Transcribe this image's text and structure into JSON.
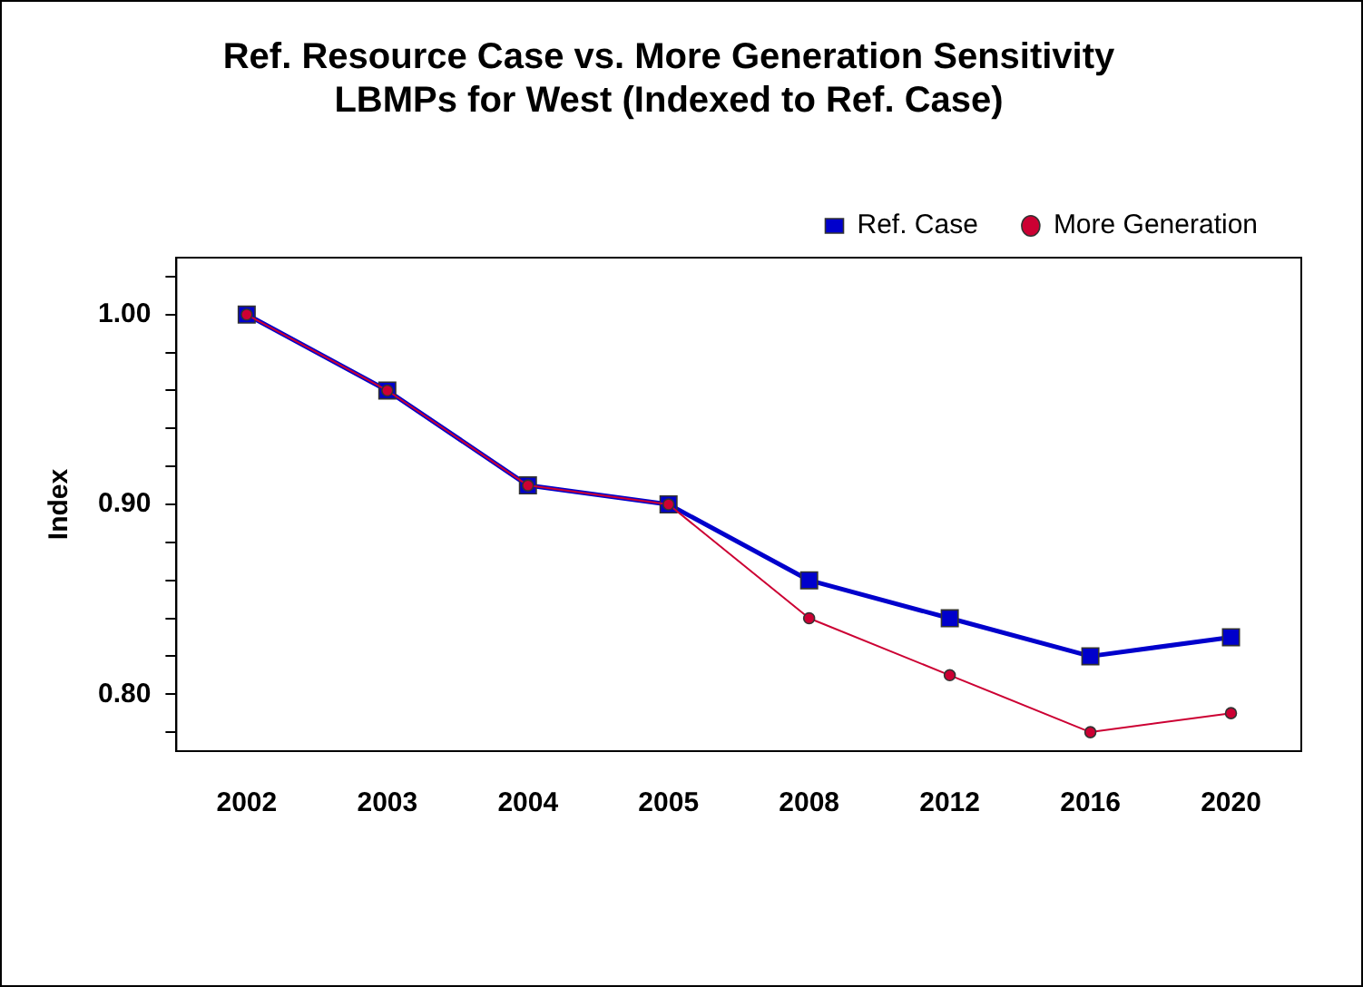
{
  "chart_data": {
    "type": "line",
    "title": "Ref. Resource Case vs. More Generation Sensitivity\nLBMPs for West (Indexed to Ref. Case)",
    "ylabel": "Index",
    "categories": [
      "2002",
      "2003",
      "2004",
      "2005",
      "2008",
      "2012",
      "2016",
      "2020"
    ],
    "series": [
      {
        "name": "Ref. Case",
        "color": "#0000cc",
        "marker": "square",
        "values": [
          1.0,
          0.96,
          0.91,
          0.9,
          0.86,
          0.84,
          0.82,
          0.83
        ]
      },
      {
        "name": "More Generation",
        "color": "#cc0033",
        "marker": "circle",
        "values": [
          1.0,
          0.96,
          0.91,
          0.9,
          0.84,
          0.81,
          0.78,
          0.79
        ]
      }
    ],
    "ylim": [
      0.77,
      1.03
    ],
    "yticks": [
      {
        "value": 0.78,
        "label": null
      },
      {
        "value": 0.8,
        "label": "0.80"
      },
      {
        "value": 0.82,
        "label": null
      },
      {
        "value": 0.84,
        "label": null
      },
      {
        "value": 0.86,
        "label": null
      },
      {
        "value": 0.88,
        "label": null
      },
      {
        "value": 0.9,
        "label": "0.90"
      },
      {
        "value": 0.92,
        "label": null
      },
      {
        "value": 0.94,
        "label": null
      },
      {
        "value": 0.96,
        "label": null
      },
      {
        "value": 0.98,
        "label": null
      },
      {
        "value": 1.0,
        "label": "1.00"
      },
      {
        "value": 1.02,
        "label": null
      }
    ],
    "grid": false,
    "legend": "top right",
    "line_style": "solid"
  }
}
